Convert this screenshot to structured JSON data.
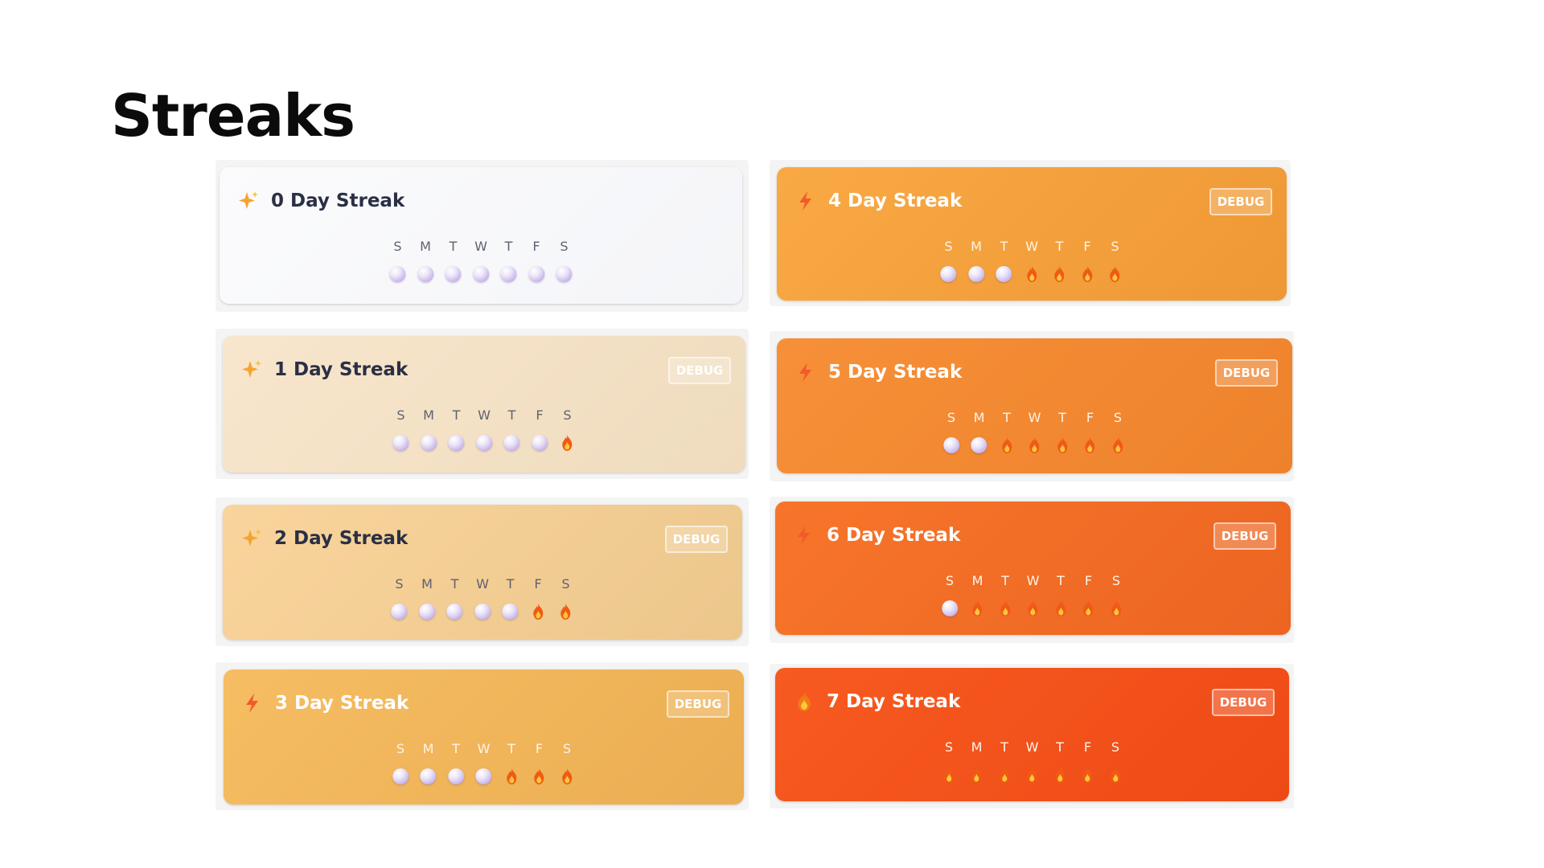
{
  "page": {
    "title": "Streaks"
  },
  "cards": [
    {
      "title": "0 Day Streak",
      "icon": "sparkle-icon",
      "debug_label": "",
      "days": [
        "S",
        "M",
        "T",
        "W",
        "T",
        "F",
        "S"
      ],
      "states": [
        "empty",
        "empty",
        "empty",
        "empty",
        "empty",
        "empty",
        "empty"
      ],
      "background": "#f8f9fb"
    },
    {
      "title": "1 Day Streak",
      "icon": "sparkle-icon",
      "debug_label": "DEBUG",
      "days": [
        "S",
        "M",
        "T",
        "W",
        "T",
        "F",
        "S"
      ],
      "states": [
        "empty",
        "empty",
        "empty",
        "empty",
        "empty",
        "empty",
        "flame"
      ],
      "background": "#f3e1c5"
    },
    {
      "title": "2 Day Streak",
      "icon": "sparkle-icon",
      "debug_label": "DEBUG",
      "days": [
        "S",
        "M",
        "T",
        "W",
        "T",
        "F",
        "S"
      ],
      "states": [
        "empty",
        "empty",
        "empty",
        "empty",
        "empty",
        "flame",
        "flame"
      ],
      "background": "#f2c98c"
    },
    {
      "title": "3 Day Streak",
      "icon": "lightning-icon",
      "debug_label": "DEBUG",
      "days": [
        "S",
        "M",
        "T",
        "W",
        "T",
        "F",
        "S"
      ],
      "states": [
        "empty",
        "empty",
        "empty",
        "empty",
        "flame",
        "flame",
        "flame"
      ],
      "background": "#f0b25a"
    },
    {
      "title": "4 Day Streak",
      "icon": "lightning-icon",
      "debug_label": "DEBUG",
      "days": [
        "S",
        "M",
        "T",
        "W",
        "T",
        "F",
        "S"
      ],
      "states": [
        "empty",
        "empty",
        "empty",
        "flame",
        "flame",
        "flame",
        "flame"
      ],
      "background": "#f4a140"
    },
    {
      "title": "5 Day Streak",
      "icon": "lightning-icon",
      "debug_label": "DEBUG",
      "days": [
        "S",
        "M",
        "T",
        "W",
        "T",
        "F",
        "S"
      ],
      "states": [
        "empty",
        "empty",
        "flame",
        "flame",
        "flame",
        "flame",
        "flame"
      ],
      "background": "#f18a34"
    },
    {
      "title": "6 Day Streak",
      "icon": "lightning-icon",
      "debug_label": "DEBUG",
      "days": [
        "S",
        "M",
        "T",
        "W",
        "T",
        "F",
        "S"
      ],
      "states": [
        "empty",
        "flame",
        "flame",
        "flame",
        "flame",
        "flame",
        "flame"
      ],
      "background": "#f26f26"
    },
    {
      "title": "7 Day Streak",
      "icon": "fire-icon",
      "debug_label": "DEBUG",
      "days": [
        "S",
        "M",
        "T",
        "W",
        "T",
        "F",
        "S"
      ],
      "states": [
        "flame",
        "flame",
        "flame",
        "flame",
        "flame",
        "flame",
        "flame"
      ],
      "background": "#f4511c"
    }
  ],
  "colors": {
    "title": "#0b0b0b",
    "flame_outer": "#f05a14",
    "flame_inner": "#ffc73a",
    "orb": "#c6b3ea"
  }
}
